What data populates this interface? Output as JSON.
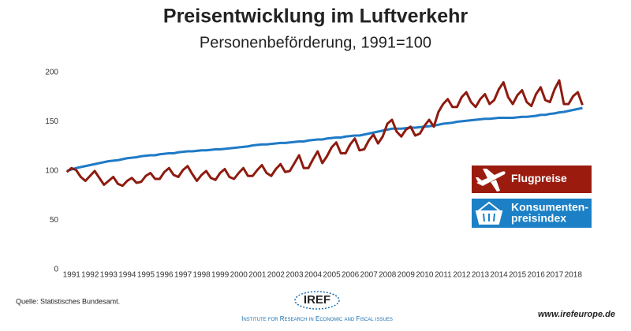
{
  "chart_data": {
    "type": "line",
    "title": "Preisentwicklung im Luftverkehr",
    "subtitle": "Personenbeförderung, 1991=100",
    "x": [
      1991,
      1991.25,
      1991.5,
      1991.75,
      1992,
      1992.25,
      1992.5,
      1992.75,
      1993,
      1993.25,
      1993.5,
      1993.75,
      1994,
      1994.25,
      1994.5,
      1994.75,
      1995,
      1995.25,
      1995.5,
      1995.75,
      1996,
      1996.25,
      1996.5,
      1996.75,
      1997,
      1997.25,
      1997.5,
      1997.75,
      1998,
      1998.25,
      1998.5,
      1998.75,
      1999,
      1999.25,
      1999.5,
      1999.75,
      2000,
      2000.25,
      2000.5,
      2000.75,
      2001,
      2001.25,
      2001.5,
      2001.75,
      2002,
      2002.25,
      2002.5,
      2002.75,
      2003,
      2003.25,
      2003.5,
      2003.75,
      2004,
      2004.25,
      2004.5,
      2004.75,
      2005,
      2005.25,
      2005.5,
      2005.75,
      2006,
      2006.25,
      2006.5,
      2006.75,
      2007,
      2007.25,
      2007.5,
      2007.75,
      2008,
      2008.25,
      2008.5,
      2008.75,
      2009,
      2009.25,
      2009.5,
      2009.75,
      2010,
      2010.25,
      2010.5,
      2010.75,
      2011,
      2011.25,
      2011.5,
      2011.75,
      2012,
      2012.25,
      2012.5,
      2012.75,
      2013,
      2013.25,
      2013.5,
      2013.75,
      2014,
      2014.25,
      2014.5,
      2014.75,
      2015,
      2015.25,
      2015.5,
      2015.75,
      2016,
      2016.25,
      2016.5,
      2016.75,
      2017,
      2017.25,
      2017.5,
      2017.75,
      2018,
      2018.25,
      2018.5,
      2018.75
    ],
    "series": [
      {
        "name": "Flugpreise",
        "color": "#8e1b10",
        "legend_color": "#9b1c0f",
        "values": [
          99,
          103,
          101,
          94,
          90,
          95,
          100,
          93,
          86,
          90,
          94,
          87,
          85,
          90,
          93,
          88,
          89,
          95,
          98,
          92,
          92,
          99,
          103,
          96,
          94,
          101,
          105,
          97,
          90,
          96,
          100,
          93,
          91,
          98,
          102,
          94,
          92,
          98,
          103,
          95,
          95,
          101,
          106,
          98,
          95,
          102,
          107,
          99,
          100,
          108,
          116,
          103,
          103,
          112,
          120,
          108,
          115,
          124,
          129,
          118,
          118,
          127,
          133,
          121,
          122,
          131,
          137,
          128,
          135,
          148,
          152,
          140,
          135,
          142,
          145,
          136,
          138,
          146,
          152,
          145,
          160,
          168,
          173,
          165,
          165,
          175,
          180,
          170,
          165,
          173,
          178,
          168,
          172,
          183,
          190,
          175,
          168,
          177,
          182,
          170,
          166,
          178,
          185,
          172,
          170,
          183,
          192,
          168,
          168,
          176,
          180,
          167
        ]
      },
      {
        "name": "Konsumenten-\npreisindex",
        "color": "#1f7ac6",
        "legend_color": "#1b80c6",
        "values": [
          100,
          101.5,
          103,
          104,
          105,
          106,
          107,
          108,
          109,
          110,
          110.5,
          111,
          112,
          113,
          113.5,
          114,
          115,
          115.5,
          116,
          116,
          117,
          117.5,
          118,
          118,
          119,
          119.5,
          120,
          120,
          120.5,
          121,
          121,
          121.5,
          122,
          122,
          122.5,
          123,
          123.5,
          124,
          124.5,
          125,
          126,
          126.5,
          127,
          127,
          127.5,
          128,
          128.5,
          128.5,
          129,
          129.5,
          130,
          130,
          131,
          131.5,
          132,
          132,
          133,
          133.5,
          134,
          134,
          135,
          135.5,
          136,
          136,
          137,
          138,
          139,
          140,
          141,
          142,
          143,
          143,
          143,
          143.5,
          144,
          144,
          144.5,
          145,
          145.5,
          146,
          147,
          148,
          148.5,
          149,
          150,
          150.5,
          151,
          151.5,
          152,
          152.5,
          153,
          153,
          153.5,
          154,
          154,
          154,
          154,
          154.5,
          155,
          155,
          155.5,
          156,
          157,
          157,
          158,
          158.5,
          159.5,
          160,
          161,
          162,
          163,
          164
        ]
      }
    ],
    "xlim": [
      1990.8,
      2018.9
    ],
    "xticks": [
      1991,
      1992,
      1993,
      1994,
      1995,
      1996,
      1997,
      1998,
      1999,
      2000,
      2001,
      2002,
      2003,
      2004,
      2005,
      2006,
      2007,
      2008,
      2009,
      2010,
      2011,
      2012,
      2013,
      2014,
      2015,
      2016,
      2017,
      2018
    ],
    "ylim": [
      0,
      200
    ],
    "yticks": [
      0,
      50,
      100,
      150,
      200
    ],
    "grid": false
  },
  "footer": {
    "source": "Quelle: Statistisches Bundesamt.",
    "logo": "IREF",
    "tagline": "Institute for Research in Economic and Fiscal issues",
    "url": "www.irefeurope.de"
  }
}
